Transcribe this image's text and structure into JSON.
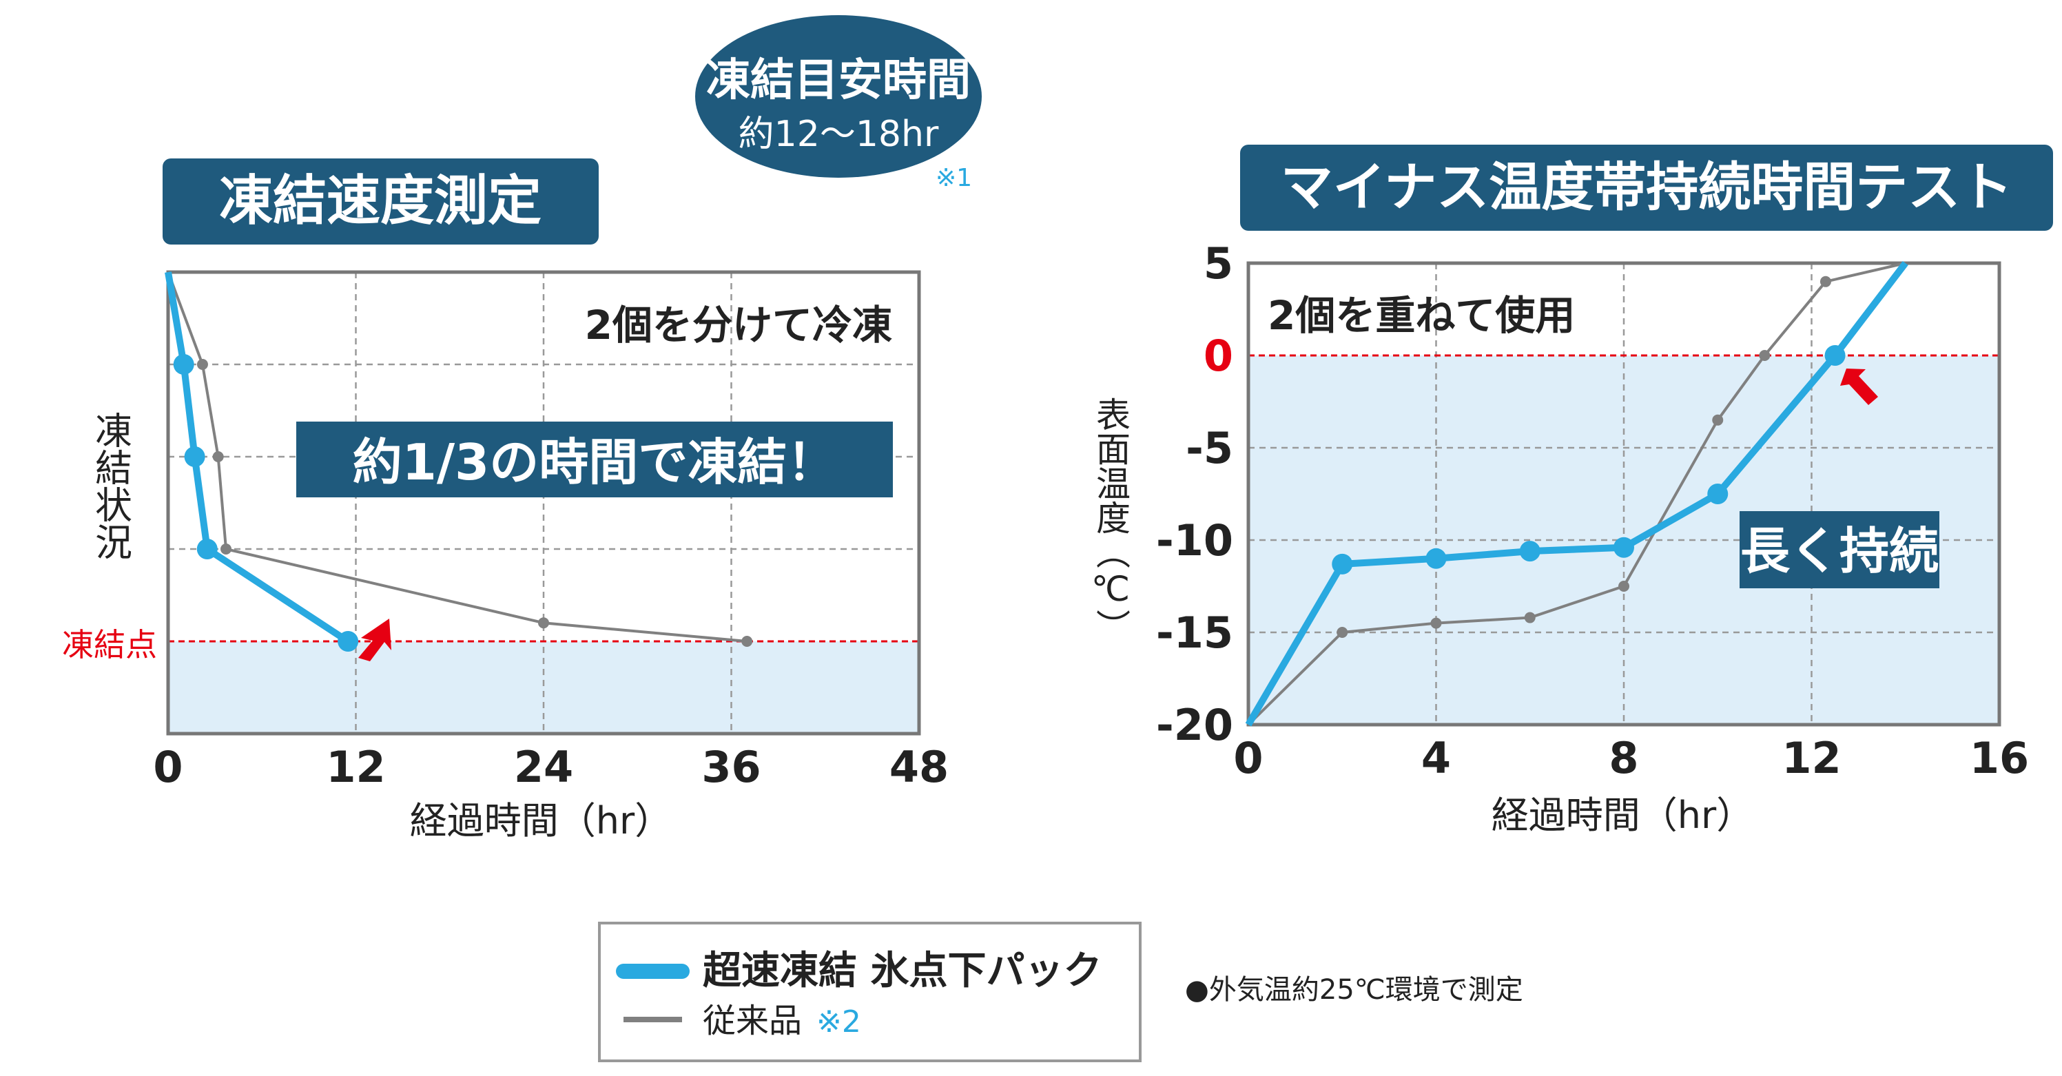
{
  "colors": {
    "accent_blue": "#29a9e0",
    "navy": "#1f5a7d",
    "gray_line": "#808080",
    "red": "#e60012",
    "fill": "#deeef9"
  },
  "left_panel": {
    "title": "凍結速度測定",
    "bubble_title": "凍結目安時間",
    "bubble_sub": "約12〜18hr",
    "footnote_mark": "※1",
    "annotation": "2個を分けて冷凍",
    "callout": "約1/3の時間で凍結！",
    "ylabel": "凍結状況",
    "freeze_label": "凍結点",
    "xlabel": "経過時間（hr）"
  },
  "right_panel": {
    "title": "マイナス温度帯持続時間テスト",
    "annotation": "2個を重ねて使用",
    "callout": "長く持続",
    "ylabel": "表面温度（℃）",
    "xlabel": "経過時間（hr）"
  },
  "legend": {
    "item1": "超速凍結 氷点下パック",
    "item2": "従来品",
    "item2_note": "※2"
  },
  "note": "●外気温約25℃環境で測定",
  "chart_data": [
    {
      "type": "line",
      "title": "凍結速度測定",
      "xlabel": "経過時間（hr）",
      "ylabel": "凍結状況",
      "xlim": [
        0,
        48
      ],
      "x_ticks": [
        0,
        12,
        24,
        36,
        48
      ],
      "ylim": [
        0,
        5
      ],
      "y_reference": {
        "label": "凍結点",
        "value": 1
      },
      "grid": true,
      "series": [
        {
          "name": "超速凍結 氷点下パック",
          "color": "#29a9e0",
          "x": [
            0,
            1,
            1.7,
            2.5,
            11.5
          ],
          "y": [
            5,
            4,
            3,
            2,
            1
          ]
        },
        {
          "name": "従来品",
          "color": "#808080",
          "x": [
            0,
            2.2,
            3.2,
            3.7,
            24,
            37
          ],
          "y": [
            5,
            4,
            3,
            2,
            1.2,
            1
          ]
        }
      ]
    },
    {
      "type": "line",
      "title": "マイナス温度帯持続時間テスト",
      "xlabel": "経過時間（hr）",
      "ylabel": "表面温度（℃）",
      "xlim": [
        0,
        16
      ],
      "x_ticks": [
        0,
        4,
        8,
        12,
        16
      ],
      "ylim": [
        -20,
        5
      ],
      "y_ticks": [
        5,
        0,
        -5,
        -10,
        -15,
        -20
      ],
      "y_reference": {
        "value": 0
      },
      "grid": true,
      "series": [
        {
          "name": "超速凍結 氷点下パック",
          "color": "#29a9e0",
          "x": [
            0,
            2,
            4,
            6,
            8,
            10,
            12.5,
            14
          ],
          "y": [
            -20,
            -11.3,
            -11,
            -10.6,
            -10.4,
            -7.5,
            0,
            5
          ]
        },
        {
          "name": "従来品",
          "color": "#808080",
          "x": [
            0,
            2,
            4,
            6,
            8,
            10,
            11,
            12.3,
            14
          ],
          "y": [
            -20,
            -15,
            -14.5,
            -14.2,
            -12.5,
            -3.5,
            0,
            4,
            5
          ]
        }
      ]
    }
  ]
}
